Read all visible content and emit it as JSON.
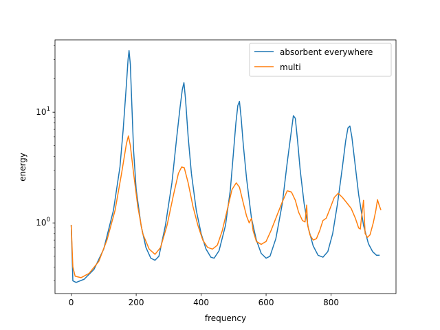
{
  "chart_data": {
    "type": "line",
    "title": "",
    "xlabel": "frequency",
    "ylabel": "energy",
    "xlim": [
      -50,
      1000
    ],
    "ylim": [
      0.23,
      45
    ],
    "yscale": "log",
    "grid": false,
    "legend_position": "top-right",
    "x_ticks": [
      {
        "value": 0,
        "label": "0"
      },
      {
        "value": 200,
        "label": "200"
      },
      {
        "value": 400,
        "label": "400"
      },
      {
        "value": 600,
        "label": "600"
      },
      {
        "value": 800,
        "label": "800"
      }
    ],
    "y_ticks": [
      {
        "value": 1,
        "base": "10",
        "exp": "0"
      },
      {
        "value": 10,
        "base": "10",
        "exp": "1"
      }
    ],
    "series": [
      {
        "name": "absorbent everywhere",
        "color": "#1f77b4",
        "points": [
          [
            0,
            0.95
          ],
          [
            5,
            0.3
          ],
          [
            15,
            0.29
          ],
          [
            40,
            0.31
          ],
          [
            70,
            0.38
          ],
          [
            100,
            0.58
          ],
          [
            130,
            1.3
          ],
          [
            150,
            3.2
          ],
          [
            160,
            7
          ],
          [
            170,
            18
          ],
          [
            175,
            30
          ],
          [
            178,
            36
          ],
          [
            182,
            27
          ],
          [
            186,
            13
          ],
          [
            192,
            4.5
          ],
          [
            200,
            2.0
          ],
          [
            215,
            0.95
          ],
          [
            230,
            0.6
          ],
          [
            245,
            0.48
          ],
          [
            258,
            0.46
          ],
          [
            270,
            0.5
          ],
          [
            290,
            0.95
          ],
          [
            310,
            2.3
          ],
          [
            325,
            6
          ],
          [
            335,
            11
          ],
          [
            342,
            16
          ],
          [
            347,
            18.5
          ],
          [
            352,
            13
          ],
          [
            360,
            6
          ],
          [
            370,
            2.8
          ],
          [
            385,
            1.3
          ],
          [
            400,
            0.8
          ],
          [
            415,
            0.58
          ],
          [
            430,
            0.49
          ],
          [
            440,
            0.48
          ],
          [
            455,
            0.56
          ],
          [
            475,
            0.95
          ],
          [
            490,
            2
          ],
          [
            500,
            4.5
          ],
          [
            507,
            8
          ],
          [
            513,
            11.5
          ],
          [
            518,
            12.5
          ],
          [
            523,
            9
          ],
          [
            530,
            5
          ],
          [
            540,
            2.5
          ],
          [
            555,
            1.1
          ],
          [
            570,
            0.7
          ],
          [
            585,
            0.53
          ],
          [
            600,
            0.48
          ],
          [
            612,
            0.5
          ],
          [
            630,
            0.72
          ],
          [
            650,
            1.5
          ],
          [
            665,
            3.5
          ],
          [
            677,
            6.5
          ],
          [
            684,
            9.3
          ],
          [
            690,
            8.8
          ],
          [
            697,
            5.5
          ],
          [
            705,
            3
          ],
          [
            717,
            1.5
          ],
          [
            730,
            0.9
          ],
          [
            745,
            0.62
          ],
          [
            760,
            0.51
          ],
          [
            775,
            0.49
          ],
          [
            790,
            0.55
          ],
          [
            805,
            0.8
          ],
          [
            820,
            1.5
          ],
          [
            835,
            3.2
          ],
          [
            845,
            5.5
          ],
          [
            852,
            7.2
          ],
          [
            858,
            7.5
          ],
          [
            864,
            6
          ],
          [
            872,
            3.8
          ],
          [
            885,
            1.8
          ],
          [
            900,
            0.95
          ],
          [
            915,
            0.65
          ],
          [
            928,
            0.55
          ],
          [
            940,
            0.51
          ],
          [
            948,
            0.51
          ]
        ]
      },
      {
        "name": "multi",
        "color": "#ff7f0e",
        "points": [
          [
            0,
            0.95
          ],
          [
            5,
            0.4
          ],
          [
            12,
            0.33
          ],
          [
            30,
            0.32
          ],
          [
            55,
            0.35
          ],
          [
            85,
            0.45
          ],
          [
            110,
            0.7
          ],
          [
            135,
            1.3
          ],
          [
            155,
            2.8
          ],
          [
            170,
            5.2
          ],
          [
            176,
            6.1
          ],
          [
            182,
            5
          ],
          [
            192,
            2.8
          ],
          [
            205,
            1.4
          ],
          [
            220,
            0.8
          ],
          [
            240,
            0.58
          ],
          [
            258,
            0.52
          ],
          [
            275,
            0.6
          ],
          [
            295,
            0.95
          ],
          [
            315,
            1.8
          ],
          [
            330,
            2.8
          ],
          [
            340,
            3.2
          ],
          [
            348,
            3.15
          ],
          [
            360,
            2.3
          ],
          [
            375,
            1.4
          ],
          [
            390,
            0.95
          ],
          [
            405,
            0.7
          ],
          [
            420,
            0.6
          ],
          [
            435,
            0.58
          ],
          [
            450,
            0.63
          ],
          [
            465,
            0.85
          ],
          [
            480,
            1.3
          ],
          [
            495,
            2
          ],
          [
            508,
            2.3
          ],
          [
            518,
            2.1
          ],
          [
            530,
            1.5
          ],
          [
            540,
            1.15
          ],
          [
            548,
            1.0
          ],
          [
            555,
            1.1
          ],
          [
            560,
            0.85
          ],
          [
            570,
            0.68
          ],
          [
            585,
            0.64
          ],
          [
            600,
            0.68
          ],
          [
            615,
            0.85
          ],
          [
            630,
            1.1
          ],
          [
            648,
            1.5
          ],
          [
            665,
            1.95
          ],
          [
            678,
            1.9
          ],
          [
            690,
            1.6
          ],
          [
            700,
            1.25
          ],
          [
            712,
            1.05
          ],
          [
            720,
            1.02
          ],
          [
            725,
            1.45
          ],
          [
            728,
            0.95
          ],
          [
            735,
            0.78
          ],
          [
            745,
            0.7
          ],
          [
            755,
            0.72
          ],
          [
            765,
            0.85
          ],
          [
            775,
            1.05
          ],
          [
            785,
            1.1
          ],
          [
            797,
            1.35
          ],
          [
            810,
            1.7
          ],
          [
            822,
            1.85
          ],
          [
            835,
            1.7
          ],
          [
            850,
            1.5
          ],
          [
            862,
            1.35
          ],
          [
            875,
            1.1
          ],
          [
            885,
            0.9
          ],
          [
            890,
            0.88
          ],
          [
            895,
            1.2
          ],
          [
            900,
            1.6
          ],
          [
            905,
            0.8
          ],
          [
            912,
            0.74
          ],
          [
            920,
            0.78
          ],
          [
            930,
            1.0
          ],
          [
            938,
            1.3
          ],
          [
            943,
            1.62
          ],
          [
            948,
            1.45
          ],
          [
            953,
            1.32
          ]
        ]
      }
    ]
  }
}
